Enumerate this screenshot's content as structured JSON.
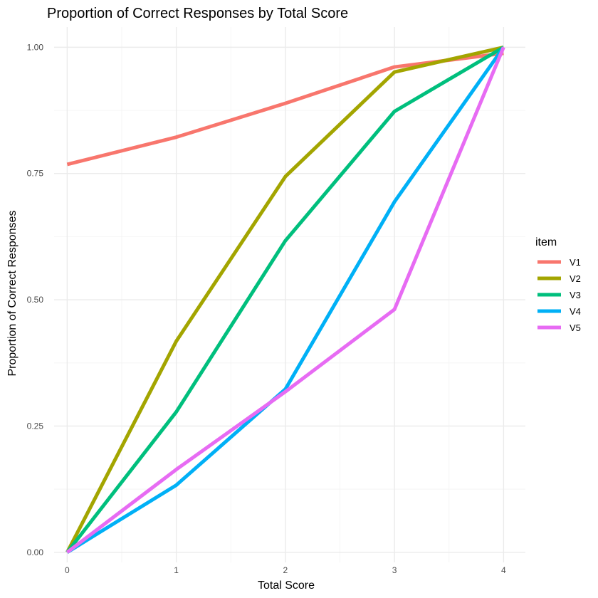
{
  "chart_data": {
    "type": "line",
    "title": "Proportion of Correct Responses by Total Score",
    "xlabel": "Total Score",
    "ylabel": "Proportion of Correct Responses",
    "x": [
      0,
      1,
      2,
      3,
      4
    ],
    "x_ticks": [
      "0",
      "1",
      "2",
      "3",
      "4"
    ],
    "y_ticks": [
      "0.00",
      "0.25",
      "0.50",
      "0.75",
      "1.00"
    ],
    "xlim": [
      -0.12,
      4.2
    ],
    "ylim": [
      -0.02,
      1.04
    ],
    "grid": true,
    "legend": {
      "title": "item",
      "placement": "right"
    },
    "series": [
      {
        "name": "V1",
        "color": "#F8766D",
        "values": [
          0.768,
          0.822,
          0.889,
          0.961,
          0.988
        ]
      },
      {
        "name": "V2",
        "color": "#A3A500",
        "values": [
          0.0,
          0.418,
          0.744,
          0.951,
          1.0
        ]
      },
      {
        "name": "V3",
        "color": "#00BF7D",
        "values": [
          0.0,
          0.278,
          0.617,
          0.873,
          1.0
        ]
      },
      {
        "name": "V4",
        "color": "#00B0F6",
        "values": [
          0.0,
          0.133,
          0.323,
          0.694,
          1.0
        ]
      },
      {
        "name": "V5",
        "color": "#E76BF3",
        "values": [
          0.0,
          0.164,
          0.318,
          0.481,
          1.0
        ]
      }
    ]
  }
}
